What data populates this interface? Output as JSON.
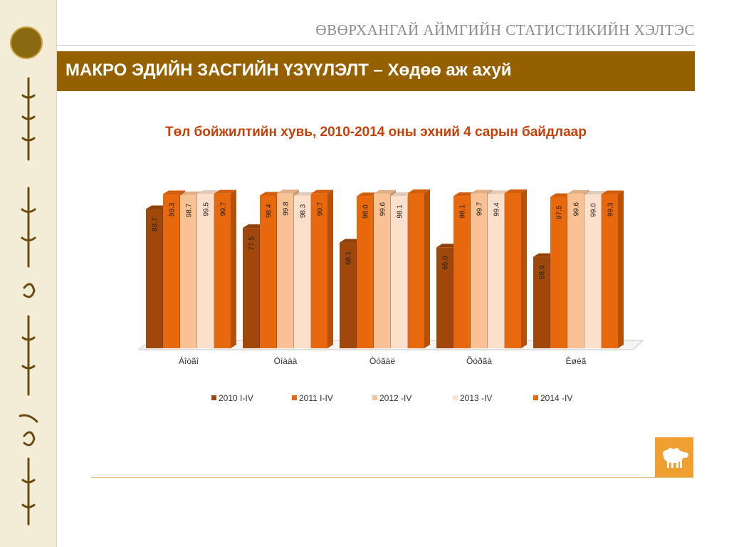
{
  "header": {
    "org_name": "ӨВӨРХАНГАЙ АЙМГИЙН СТАТИСТИКИЙН ХЭЛТЭС",
    "banner_title": "МАКРО ЭДИЙН ЗАСГИЙН ҮЗҮҮЛЭЛТ – Хөдөө аж ахуй"
  },
  "icons": {
    "logo": "statistics-emblem-icon",
    "footer": "sheep-icon"
  },
  "colors": {
    "banner": "#956100",
    "title": "#c4420a",
    "sidebar": "#f3edd8"
  },
  "chart_data": {
    "type": "bar",
    "title": "Төл бойжилтийн хувь, 2010-2014 оны эхний  4 сарын байдлаар",
    "categories": [
      "Áîòãî",
      "Óíààà",
      "Òóãàë",
      "Õóðãà",
      "Èøèã"
    ],
    "series": [
      {
        "name": "2010 I-IV",
        "color": "#a0480c",
        "values": [
          89.7,
          77.5,
          68.1,
          65.0,
          58.9
        ]
      },
      {
        "name": "2011 I-IV",
        "color": "#e8680e",
        "values": [
          99.3,
          98.4,
          98.0,
          98.1,
          97.5
        ]
      },
      {
        "name": "2012 -IV",
        "color": "#f9c294",
        "values": [
          98.7,
          99.8,
          99.6,
          99.7,
          99.6
        ]
      },
      {
        "name": "2013 -IV",
        "color": "#fce0cc",
        "values": [
          99.5,
          98.3,
          98.1,
          99.4,
          99.0
        ]
      },
      {
        "name": "2014 -IV",
        "color": "#e8680e",
        "values": [
          99.7,
          99.7,
          100.0,
          100.0,
          99.3
        ]
      }
    ],
    "data_labels": [
      [
        "89.7",
        "99.3",
        "98.7",
        "99.5",
        "99.7"
      ],
      [
        "77.5",
        "98.4",
        "99.8",
        "98.3",
        "99.7"
      ],
      [
        "68.1",
        "98.0",
        "99.6",
        "98.1",
        ""
      ],
      [
        "65.0",
        "98.1",
        "99.7",
        "99.4",
        ""
      ],
      [
        "58.9",
        "97.5",
        "99.6",
        "99.0",
        "99.3"
      ]
    ],
    "ylim": [
      0,
      100
    ],
    "grid": false,
    "legend_position": "bottom"
  }
}
